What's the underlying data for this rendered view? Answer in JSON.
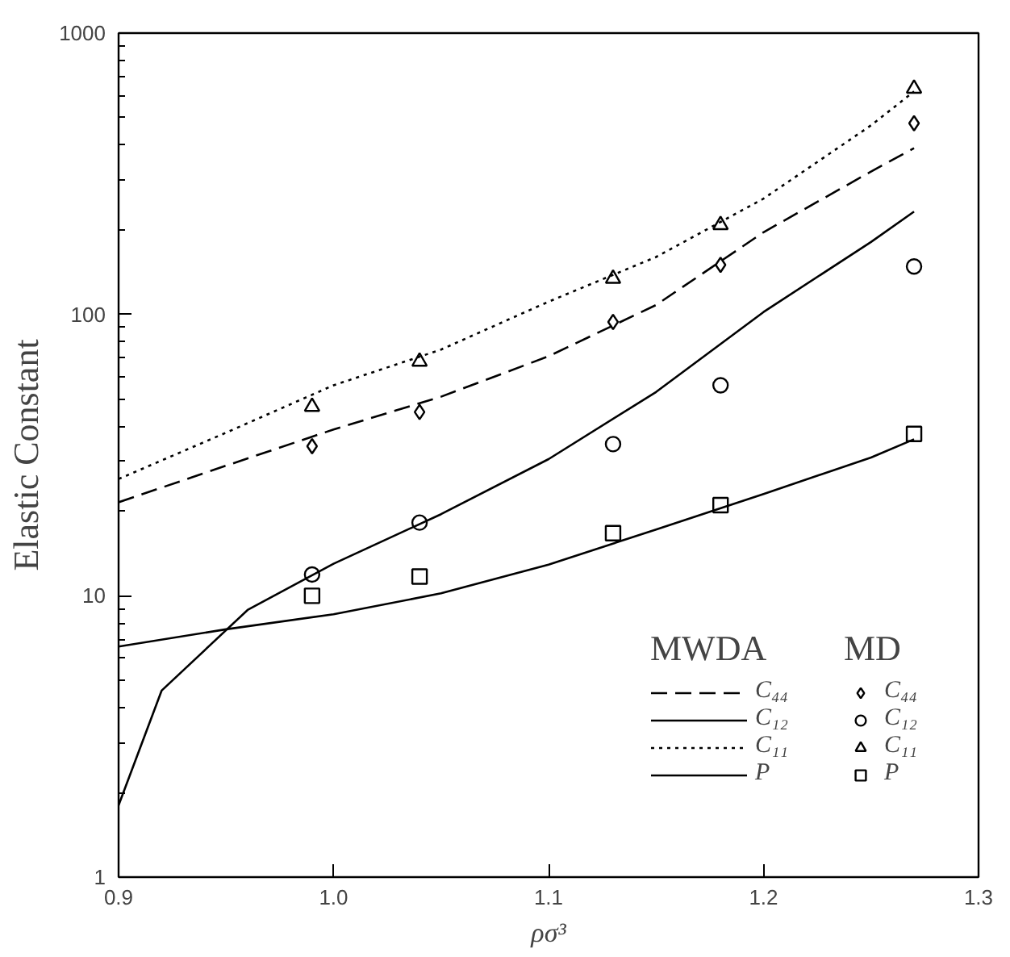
{
  "chart_data": {
    "type": "line",
    "xlabel": "ρσ³",
    "ylabel": "Elastic Constant",
    "log": "y",
    "xlim": [
      0.9,
      1.3
    ],
    "ylim": [
      1,
      1000
    ],
    "xticks": [
      {
        "value": 0.9,
        "label": "0.9"
      },
      {
        "value": 1.0,
        "label": "1.0"
      },
      {
        "value": 1.1,
        "label": "1.1"
      },
      {
        "value": 1.2,
        "label": "1.2"
      },
      {
        "value": 1.3,
        "label": "1.3"
      }
    ],
    "yticks": [
      1,
      10,
      100,
      1000
    ],
    "grid": false,
    "legend": "bottom right",
    "annotations": [
      "MWDA",
      "MD"
    ],
    "series": [
      {
        "name": "C₄₄",
        "line_style": "dashed",
        "color": "#000000",
        "x": [
          0.9,
          0.95,
          1.0,
          1.05,
          1.1,
          1.15,
          1.2,
          1.25,
          1.27
        ],
        "values": [
          21.5,
          29,
          39,
          51,
          71,
          108,
          196,
          322,
          390
        ]
      },
      {
        "name": "C₁₂",
        "line_style": "solid",
        "color": "#000000",
        "x": [
          0.9,
          0.92,
          0.96,
          1.0,
          1.05,
          1.1,
          1.15,
          1.2,
          1.25,
          1.27
        ],
        "values": [
          1.8,
          4.6,
          8.9,
          13,
          19.5,
          30.6,
          53,
          102,
          181,
          232
        ]
      },
      {
        "name": "C₁₁",
        "line_style": "dotted",
        "color": "#000000",
        "x": [
          0.9,
          0.95,
          1.0,
          1.05,
          1.1,
          1.15,
          1.2,
          1.25,
          1.27
        ],
        "values": [
          26,
          38,
          56,
          75,
          111,
          160,
          258,
          470,
          620
        ]
      },
      {
        "name": "P",
        "line_style": "solid",
        "color": "#000000",
        "x": [
          0.9,
          0.95,
          1.0,
          1.05,
          1.1,
          1.15,
          1.2,
          1.25,
          1.27
        ],
        "values": [
          6.6,
          7.6,
          8.6,
          10.2,
          12.9,
          17.2,
          23,
          31,
          36
        ]
      },
      {
        "name": "C₄₄",
        "type": "scatter",
        "marker": "diamond",
        "color": "#000000",
        "x": [
          0.99,
          1.04,
          1.13,
          1.18,
          1.27
        ],
        "values": [
          34,
          45,
          94,
          150,
          478
        ]
      },
      {
        "name": "C₁₂",
        "type": "scatter",
        "marker": "circle",
        "color": "#000000",
        "x": [
          0.99,
          1.04,
          1.13,
          1.18,
          1.27
        ],
        "values": [
          11.9,
          18.2,
          34.6,
          56,
          148
        ]
      },
      {
        "name": "C₁₁",
        "type": "scatter",
        "marker": "triangle",
        "color": "#000000",
        "x": [
          0.99,
          1.04,
          1.13,
          1.18,
          1.27
        ],
        "values": [
          47,
          68,
          134,
          208,
          635
        ]
      },
      {
        "name": "P",
        "type": "scatter",
        "marker": "square",
        "color": "#000000",
        "x": [
          0.99,
          1.04,
          1.13,
          1.18,
          1.27
        ],
        "values": [
          10,
          11.7,
          16.7,
          21,
          37.6
        ]
      }
    ]
  }
}
